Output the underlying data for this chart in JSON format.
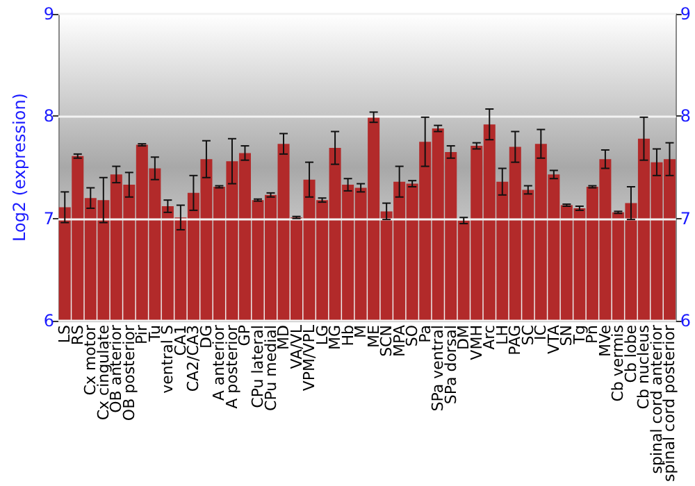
{
  "chart_data": {
    "type": "bar",
    "ylabel": "Log2 (expression)",
    "categories": [
      "LS",
      "RS",
      "Cx motor",
      "Cx cingulate",
      "OB anterior",
      "OB posterior",
      "Pir",
      "Tu",
      "ventral S",
      "CA1",
      "CA2/CA3",
      "DG",
      "A anterior",
      "A posterior",
      "GP",
      "CPu lateral",
      "CPu medial",
      "MD",
      "VA/VL",
      "VPM/VPL",
      "LG",
      "MG",
      "Hb",
      "M",
      "ME",
      "SCN",
      "MPA",
      "SO",
      "Pa",
      "SPa ventral",
      "SPa dorsal",
      "DM",
      "VMH",
      "Arc",
      "LH",
      "PAG",
      "SC",
      "IC",
      "VTA",
      "SN",
      "Tg",
      "Pn",
      "MVe",
      "Cb vermis",
      "Cb lobe",
      "Cb nucleus",
      "spinal cord anterior",
      "spinal cord posterior"
    ],
    "values": [
      7.11,
      7.61,
      7.2,
      7.18,
      7.43,
      7.33,
      7.72,
      7.49,
      7.12,
      7.01,
      7.25,
      7.58,
      7.31,
      7.56,
      7.64,
      7.18,
      7.23,
      7.73,
      7.01,
      7.38,
      7.18,
      7.69,
      7.33,
      7.3,
      7.99,
      7.07,
      7.36,
      7.34,
      7.75,
      7.88,
      7.65,
      6.98,
      7.71,
      7.92,
      7.36,
      7.7,
      7.28,
      7.73,
      7.43,
      7.13,
      7.1,
      7.31,
      7.58,
      7.06,
      7.15,
      7.78,
      7.55,
      7.58
    ],
    "errors": [
      0.15,
      0.02,
      0.1,
      0.22,
      0.08,
      0.12,
      0.01,
      0.11,
      0.06,
      0.12,
      0.17,
      0.18,
      0.01,
      0.22,
      0.07,
      0.01,
      0.02,
      0.1,
      0.01,
      0.17,
      0.02,
      0.16,
      0.06,
      0.04,
      0.05,
      0.08,
      0.15,
      0.03,
      0.24,
      0.03,
      0.06,
      0.03,
      0.03,
      0.15,
      0.13,
      0.15,
      0.04,
      0.14,
      0.04,
      0.01,
      0.02,
      0.01,
      0.09,
      0.01,
      0.16,
      0.21,
      0.13,
      0.16
    ],
    "color": "#b22a2a",
    "ylim": [
      6,
      9
    ],
    "yticks": [
      6,
      7,
      8,
      9
    ],
    "y2lim": [
      6,
      9
    ],
    "y2ticks": [
      6,
      7,
      8,
      9
    ],
    "grid": "y"
  }
}
